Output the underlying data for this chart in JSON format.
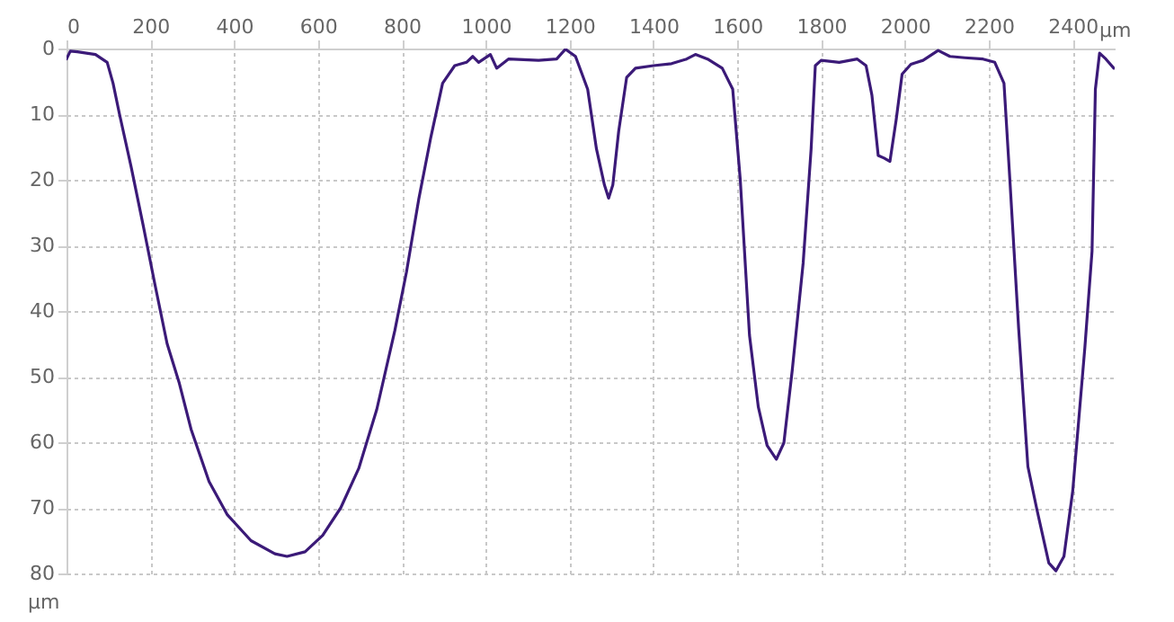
{
  "chart_data": {
    "type": "line",
    "xlabel": "µm",
    "ylabel": "µm",
    "xlim": [
      0,
      2500
    ],
    "ylim": [
      80,
      0
    ],
    "xticks": [
      0,
      200,
      400,
      600,
      800,
      1000,
      1200,
      1400,
      1600,
      1800,
      2000,
      2200,
      2400
    ],
    "yticks": [
      0,
      10,
      20,
      30,
      40,
      50,
      60,
      70,
      80
    ],
    "grid": true,
    "marker": "none",
    "line_style": "solid",
    "x": [
      0,
      9,
      26,
      69,
      97,
      111,
      126,
      154,
      183,
      211,
      240,
      269,
      297,
      340,
      383,
      440,
      497,
      526,
      569,
      611,
      654,
      697,
      740,
      783,
      811,
      840,
      869,
      897,
      926,
      954,
      969,
      983,
      1011,
      1026,
      1054,
      1126,
      1169,
      1190,
      1214,
      1243,
      1264,
      1283,
      1293,
      1303,
      1317,
      1336,
      1357,
      1400,
      1443,
      1479,
      1500,
      1529,
      1564,
      1589,
      1607,
      1629,
      1650,
      1671,
      1693,
      1711,
      1731,
      1757,
      1776,
      1786,
      1800,
      1843,
      1886,
      1907,
      1921,
      1936,
      1950,
      1964,
      1979,
      1993,
      2014,
      2043,
      2079,
      2107,
      2143,
      2186,
      2214,
      2236,
      2250,
      2271,
      2293,
      2314,
      2343,
      2360,
      2379,
      2400,
      2429,
      2446,
      2454,
      2464,
      2479,
      2498
    ],
    "series": [
      {
        "color": "#3b1a78",
        "values": [
          1.6,
          0.4,
          0.5,
          0.9,
          2.1,
          5.3,
          9.9,
          18,
          27,
          36,
          45,
          51,
          58,
          66,
          71,
          75,
          77,
          77.4,
          76.7,
          74.2,
          70,
          64,
          55,
          43,
          34,
          23,
          13.5,
          5.3,
          2.6,
          2.1,
          1.2,
          2.1,
          0.9,
          3,
          1.6,
          1.8,
          1.6,
          0.1,
          1.2,
          6.2,
          15.3,
          20.8,
          22.8,
          20.8,
          12.6,
          4.4,
          3,
          2.6,
          2.3,
          1.6,
          0.9,
          1.6,
          3,
          6.2,
          20,
          43.7,
          54.6,
          60.5,
          62.6,
          60.1,
          49,
          32.7,
          15.3,
          2.6,
          1.8,
          2.1,
          1.6,
          2.6,
          7.1,
          16.3,
          16.7,
          17.2,
          10.8,
          3.9,
          2.4,
          1.8,
          0.3,
          1.2,
          1.4,
          1.6,
          2.1,
          5.3,
          20,
          42.7,
          63.7,
          70.1,
          78.4,
          79.6,
          77.4,
          67.4,
          45.5,
          30.9,
          6.2,
          0.7,
          1.6,
          3
        ]
      }
    ]
  }
}
